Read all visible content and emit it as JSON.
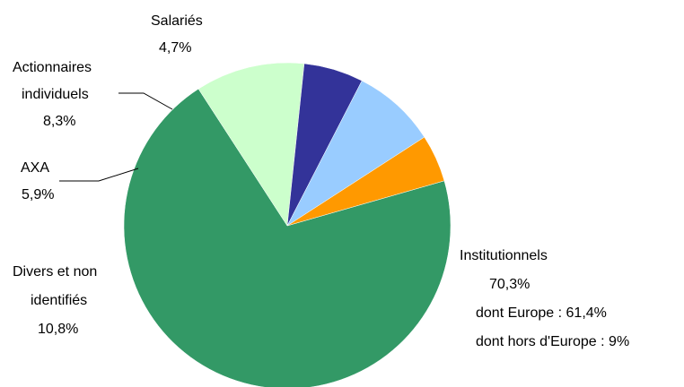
{
  "chart_data": {
    "type": "pie",
    "title": "",
    "start_angle_deg": 74,
    "direction": "clockwise",
    "slices": [
      {
        "name": "Institutionnels",
        "value": 70.3,
        "label": "70,3%",
        "color": "#339966",
        "notes": [
          "dont Europe : 61,4%",
          "dont hors d'Europe : 9%"
        ]
      },
      {
        "name": "Divers et non",
        "name2": "identifiés",
        "value": 10.8,
        "label": "10,8%",
        "color": "#CCFFCC"
      },
      {
        "name": "AXA",
        "value": 5.9,
        "label": "5,9%",
        "color": "#333399"
      },
      {
        "name": "Actionnaires",
        "name2": "individuels",
        "value": 8.3,
        "label": "8,3%",
        "color": "#99CCFF"
      },
      {
        "name": "Salariés",
        "value": 4.7,
        "label": "4,7%",
        "color": "#FF9900"
      }
    ]
  }
}
